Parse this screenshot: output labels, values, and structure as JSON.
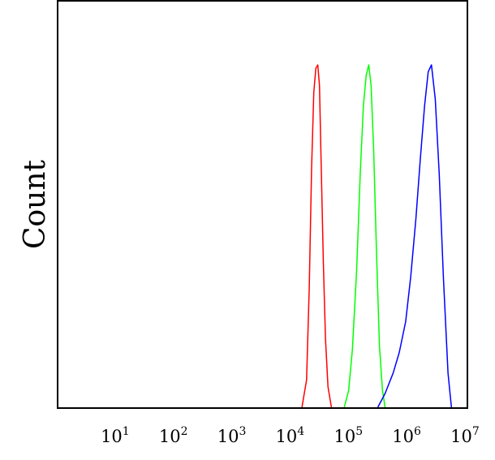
{
  "chart_data": {
    "type": "line",
    "title": "",
    "xlabel": "",
    "ylabel": "Count",
    "x_scale": "log",
    "xlim": [
      1,
      10000000
    ],
    "ylim": [
      0,
      100
    ],
    "grid": false,
    "legend": "none",
    "ticks": [
      {
        "base": "10",
        "exp": "1",
        "value": 10
      },
      {
        "base": "10",
        "exp": "2",
        "value": 100
      },
      {
        "base": "10",
        "exp": "3",
        "value": 1000
      },
      {
        "base": "10",
        "exp": "4",
        "value": 10000
      },
      {
        "base": "10",
        "exp": "5",
        "value": 100000
      },
      {
        "base": "10",
        "exp": "6",
        "value": 1000000
      },
      {
        "base": "10",
        "exp": "7",
        "value": 10000000
      }
    ],
    "series": [
      {
        "color": "#ff0000",
        "x": [
          15000,
          18000,
          20000,
          22000,
          24000,
          26000,
          28000,
          30000,
          32000,
          35000,
          38000,
          42000,
          48000
        ],
        "values": [
          0,
          8,
          35,
          70,
          92,
          99,
          100,
          94,
          72,
          42,
          20,
          6,
          0
        ]
      },
      {
        "color": "#00ff00",
        "x": [
          80000,
          95000,
          110000,
          130000,
          150000,
          170000,
          190000,
          210000,
          230000,
          255000,
          285000,
          320000,
          360000,
          400000
        ],
        "values": [
          0,
          5,
          17,
          40,
          68,
          88,
          97,
          100,
          94,
          75,
          45,
          18,
          5,
          0
        ]
      },
      {
        "color": "#0000ff",
        "x": [
          300000,
          400000,
          550000,
          700000,
          900000,
          1100000,
          1350000,
          1600000,
          1900000,
          2200000,
          2500000,
          2900000,
          3400000,
          4000000,
          4800000,
          5500000
        ],
        "values": [
          0,
          4,
          10,
          16,
          25,
          38,
          55,
          72,
          88,
          98,
          100,
          90,
          68,
          38,
          10,
          0
        ]
      }
    ]
  }
}
